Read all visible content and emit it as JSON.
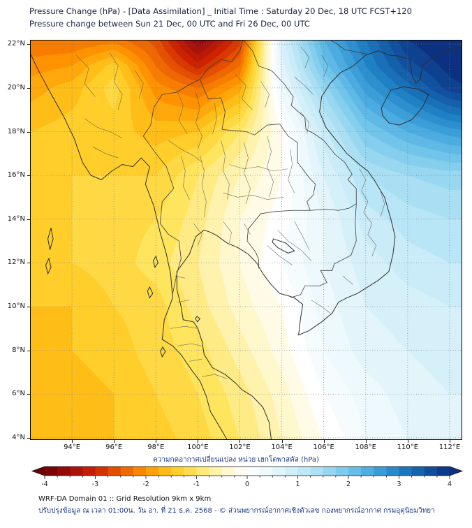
{
  "chart_data": {
    "type": "heatmap",
    "title": "Pressure Change (hPa) - [Data Assimilation] _ Initial Time : Saturday 20 Dec, 18 UTC FCST+120",
    "subtitle": "Pressure change between Sun 21 Dec, 00 UTC and Fri 26 Dec, 00 UTC",
    "units": "hPa",
    "xlabel": "",
    "ylabel": "",
    "xlim": [
      92,
      112.6
    ],
    "ylim": [
      3.9,
      22.2
    ],
    "grid_on": true,
    "x_tick_values": [
      94,
      96,
      98,
      100,
      102,
      104,
      106,
      108,
      110,
      112
    ],
    "x_tick_labels": [
      "94°E",
      "96°E",
      "98°E",
      "100°E",
      "102°E",
      "104°E",
      "106°E",
      "108°E",
      "110°E",
      "112°E"
    ],
    "y_tick_values": [
      22,
      20,
      18,
      16,
      14,
      12,
      10,
      8,
      6,
      4
    ],
    "y_tick_labels": [
      "22°N",
      "20°N",
      "18°N",
      "16°N",
      "14°N",
      "12°N",
      "10°N",
      "8°N",
      "6°N",
      "4°N"
    ],
    "contour_interval": 0.2,
    "grid": {
      "lons": [
        92,
        94,
        96,
        98,
        100,
        102,
        104,
        106,
        108,
        110,
        112,
        113
      ],
      "lats": [
        22.2,
        21,
        20,
        18,
        16,
        14,
        12,
        10,
        8,
        6,
        3.9
      ],
      "values": [
        [
          -2.3,
          -2.3,
          -2.2,
          -2.6,
          -3.7,
          -2.8,
          0.8,
          2.3,
          3.1,
          3.9,
          4.2,
          4.3
        ],
        [
          -2.0,
          -1.9,
          -1.4,
          -2.3,
          -3.0,
          -2.3,
          0.6,
          2.0,
          2.9,
          3.6,
          4.0,
          4.1
        ],
        [
          -1.8,
          -1.6,
          -1.2,
          -2.0,
          -2.3,
          -1.8,
          0.4,
          1.6,
          2.6,
          3.2,
          3.8,
          3.9
        ],
        [
          -1.5,
          -1.4,
          -1.4,
          -1.6,
          -1.5,
          -0.9,
          -0.1,
          1.0,
          1.9,
          2.3,
          2.6,
          2.7
        ],
        [
          -1.4,
          -1.3,
          -1.3,
          -1.3,
          -0.9,
          -0.5,
          -0.1,
          0.7,
          1.3,
          1.5,
          1.6,
          1.6
        ],
        [
          -1.3,
          -1.3,
          -1.2,
          -1.1,
          -0.8,
          -0.3,
          0.0,
          0.5,
          1.0,
          1.2,
          1.3,
          1.3
        ],
        [
          -1.4,
          -1.3,
          -1.2,
          -1.0,
          -0.7,
          -0.3,
          0.1,
          0.5,
          0.8,
          1.0,
          1.1,
          1.1
        ],
        [
          -1.5,
          -1.5,
          -1.3,
          -1.2,
          -0.8,
          -0.4,
          -0.1,
          0.4,
          0.7,
          0.8,
          0.9,
          0.9
        ],
        [
          -1.6,
          -1.5,
          -1.4,
          -1.2,
          -1.0,
          -0.6,
          -0.2,
          0.3,
          0.6,
          0.7,
          0.8,
          0.8
        ],
        [
          -1.6,
          -1.6,
          -1.5,
          -1.3,
          -1.1,
          -0.8,
          -0.4,
          0.1,
          0.4,
          0.6,
          0.7,
          0.7
        ],
        [
          -1.7,
          -1.6,
          -1.5,
          -1.4,
          -1.2,
          -0.9,
          -0.5,
          -0.1,
          0.3,
          0.5,
          0.6,
          0.6
        ]
      ]
    },
    "colormap": {
      "stops": [
        [
          -4,
          "#6d0000"
        ],
        [
          -3.5,
          "#a00d0d"
        ],
        [
          -3,
          "#cc2200"
        ],
        [
          -2.5,
          "#ea5c00"
        ],
        [
          -2,
          "#ff9200"
        ],
        [
          -1.5,
          "#ffc81e"
        ],
        [
          -1,
          "#ffe45e"
        ],
        [
          -0.5,
          "#fff6c0"
        ],
        [
          0,
          "#ffffff"
        ],
        [
          0.5,
          "#e9f7fb"
        ],
        [
          1,
          "#c9ecf8"
        ],
        [
          1.5,
          "#a2dcf2"
        ],
        [
          2,
          "#72c5ea"
        ],
        [
          2.5,
          "#43a5dd"
        ],
        [
          3,
          "#2080c4"
        ],
        [
          3.5,
          "#1158a5"
        ],
        [
          4,
          "#0c3180"
        ]
      ]
    },
    "colorbar": {
      "title": "ความกดอากาศเปลี่ยนแปลง หน่วย เฮกโตพาสคัล (hPa)",
      "range": [
        -4,
        4
      ],
      "minor_step": 0.25,
      "tick_values": [
        -4,
        -3,
        -2,
        -1,
        0,
        1,
        2,
        3,
        4
      ],
      "tick_labels": [
        "-4",
        "-3",
        "-2",
        "-1",
        "0",
        "1",
        "2",
        "3",
        "4"
      ]
    }
  },
  "footer": {
    "line1": "WRF-DA Domain 01 :: Grid Resolution 9km x 9km",
    "line2": "ปรับปรุงข้อมูล ณ เวลา 01:00น. วัน อา. ที่ 21 ธ.ค. 2568 - © ส่วนพยากรณ์อากาศเชิงตัวเลข กองพยากรณ์อากาศ กรมอุตุนิยมวิทยา"
  }
}
